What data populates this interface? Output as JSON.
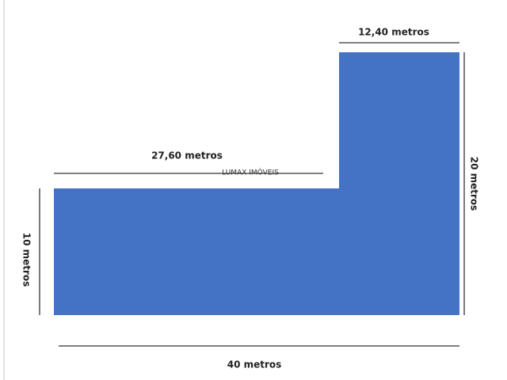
{
  "dimensions": {
    "top_right": "12,40 metros",
    "top_left": "27,60 metros",
    "right": "20 metros",
    "left": "10 metros",
    "bottom": "40 metros"
  },
  "watermark": "LUMAX IMÓVEIS"
}
